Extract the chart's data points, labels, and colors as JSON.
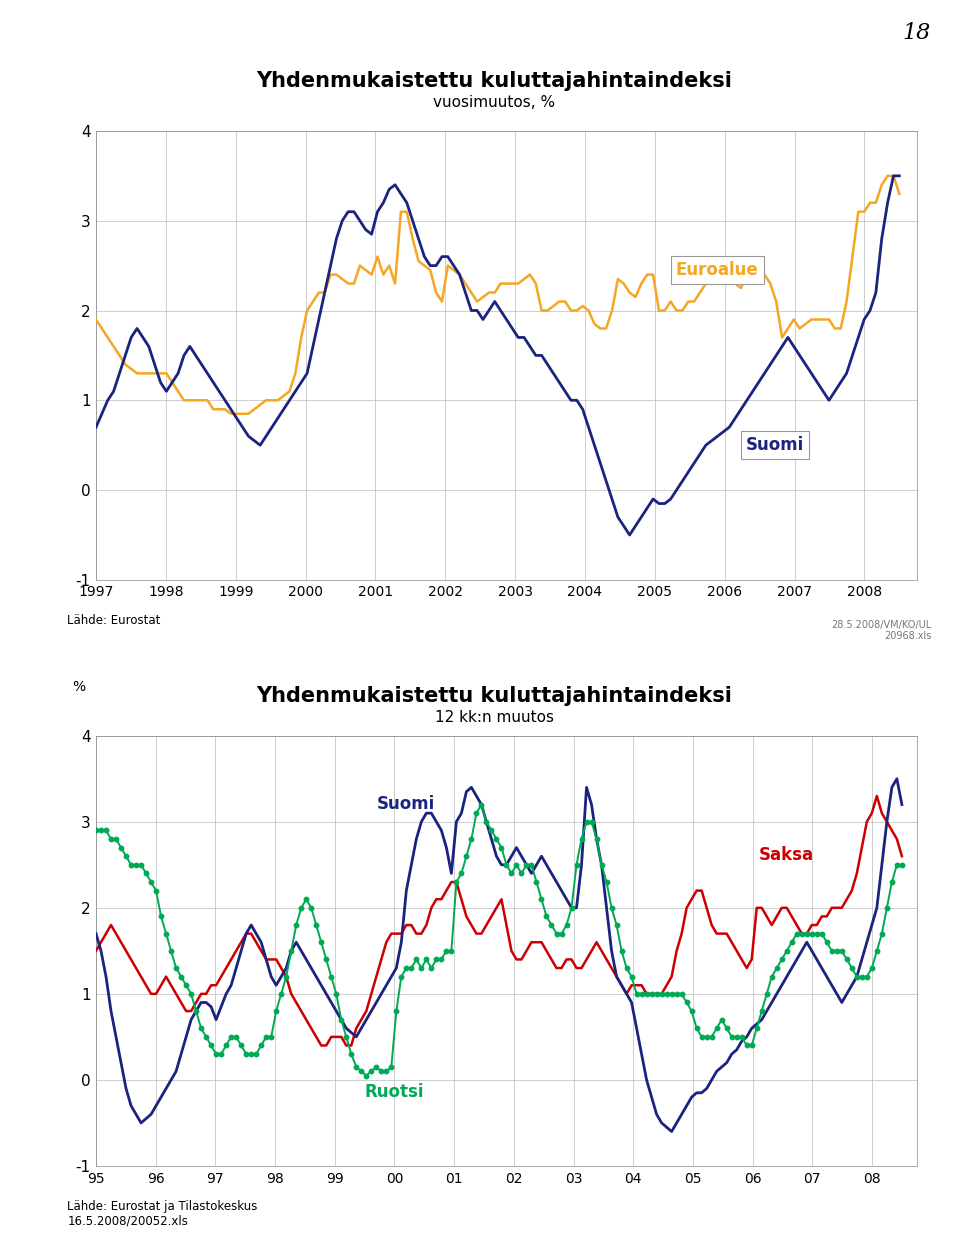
{
  "chart1": {
    "title": "Yhdenmukaistettu kuluttajahintaindeksi",
    "subtitle": "vuosimuutos, %",
    "ylim": [
      -1,
      4
    ],
    "yticks": [
      -1,
      0,
      1,
      2,
      3,
      4
    ],
    "xlabel_note": "Lähde: Eurostat",
    "note2": "28.5.2008/VM/KO/UL\n20968.xls",
    "euroalue_color": "#F5A623",
    "suomi_color": "#1A237E",
    "page_num": "18"
  },
  "chart2": {
    "title": "Yhdenmukaistettu kuluttajahintaindeksi",
    "subtitle": "12 kk:n muutos",
    "ylabel": "%",
    "ylim": [
      -1,
      4
    ],
    "yticks": [
      -1,
      0,
      1,
      2,
      3,
      4
    ],
    "xlabel_note": "Lähde: Eurostat ja Tilastokeskus\n16.5.2008/20052.xls",
    "suomi_color": "#1A237E",
    "saksa_color": "#CC0000",
    "ruotsi_color": "#00AA55"
  }
}
